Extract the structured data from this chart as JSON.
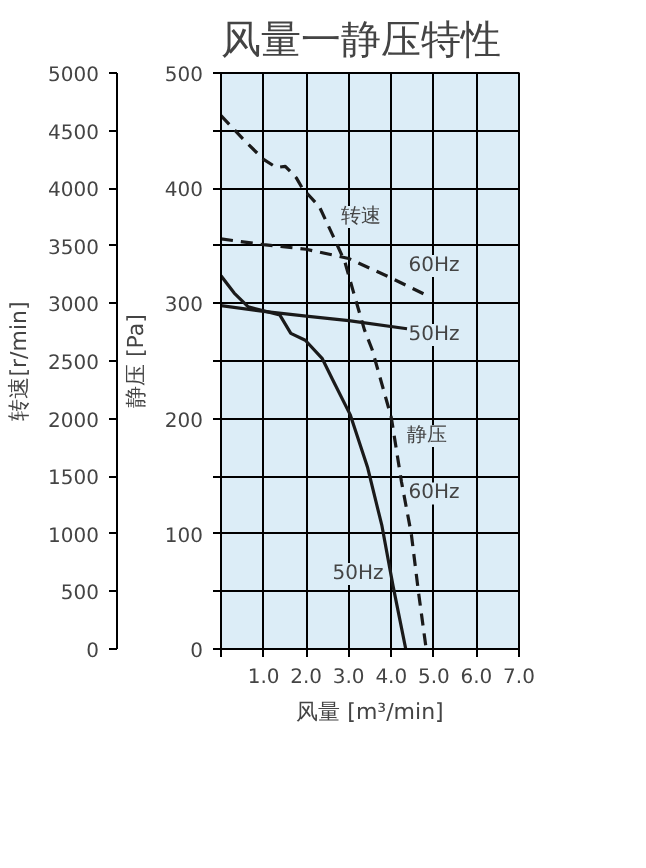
{
  "chart_data": {
    "type": "line",
    "title": "风量一静压特性",
    "xlabel": "风量 [m³/min]",
    "ylabel": "静压 [Pa]",
    "y2label": "转速[r/min]",
    "xlim": [
      0,
      7
    ],
    "xticks": [
      {
        "value": 0,
        "label": null
      },
      {
        "value": 1,
        "label": "1.0"
      },
      {
        "value": 2,
        "label": "2.0"
      },
      {
        "value": 3,
        "label": "3.0"
      },
      {
        "value": 4,
        "label": "4.0"
      },
      {
        "value": 5,
        "label": "5.0"
      },
      {
        "value": 6,
        "label": "6.0"
      },
      {
        "value": 7,
        "label": "7.0"
      }
    ],
    "ylim": [
      0,
      500
    ],
    "yticks": [
      0,
      {
        "value": 50,
        "label": null
      },
      100,
      {
        "value": 150,
        "label": null
      },
      200,
      {
        "value": 250,
        "label": null
      },
      300,
      {
        "value": 350,
        "label": null
      },
      400,
      {
        "value": 450,
        "label": null
      },
      500
    ],
    "y2lim": [
      0,
      5000
    ],
    "y2ticks": [
      0,
      500,
      1000,
      1500,
      2000,
      2500,
      3000,
      3500,
      4000,
      4500,
      5000
    ],
    "grid": true,
    "marker": "none",
    "series": [
      {
        "color": "#1a1a1a",
        "line_style": "dashed",
        "axis": "y2",
        "x": [
          0,
          1.0,
          2.0,
          3.0,
          4.0,
          4.83
        ],
        "values": [
          3560,
          3510,
          3470,
          3390,
          3220,
          3070
        ]
      },
      {
        "color": "#1a1a1a",
        "line_style": "solid",
        "axis": "y2",
        "x": [
          0,
          1.0,
          2.0,
          3.0,
          4.37
        ],
        "values": [
          2980,
          2930,
          2890,
          2850,
          2780
        ]
      },
      {
        "color": "#1a1a1a",
        "line_style": "dashed",
        "x": [
          0,
          0.51,
          1.0,
          1.3,
          1.51,
          1.77,
          1.91,
          2.31,
          2.64,
          2.91,
          3.11,
          3.37,
          3.55,
          4.0,
          4.24,
          4.47,
          4.64,
          4.82
        ],
        "values": [
          463,
          443,
          425,
          418,
          419,
          409,
          400,
          384,
          358,
          336,
          310,
          277,
          260,
          201,
          145,
          100,
          49,
          0
        ]
      },
      {
        "color": "#1a1a1a",
        "line_style": "solid",
        "x": [
          0,
          0.31,
          0.64,
          1.38,
          1.64,
          1.98,
          2.38,
          2.62,
          3.04,
          3.44,
          3.78,
          4.04,
          4.34
        ],
        "values": [
          324,
          309,
          297,
          290,
          274,
          268,
          252,
          234,
          203,
          158,
          107,
          55,
          0
        ]
      }
    ],
    "annotations": [
      "转速",
      "60Hz",
      "50Hz",
      "静压",
      "60Hz",
      "50Hz"
    ]
  }
}
